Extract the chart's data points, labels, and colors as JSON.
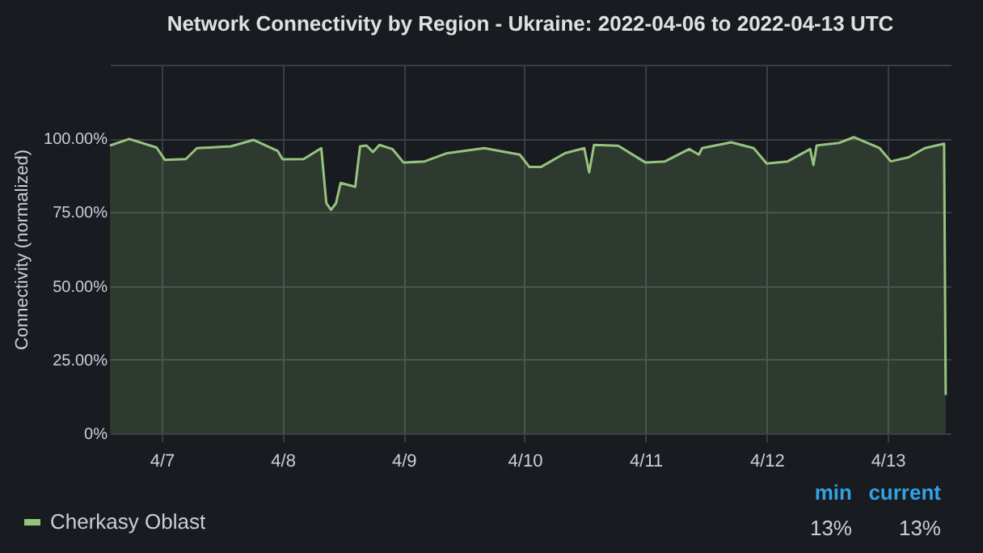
{
  "chart_data": {
    "type": "area",
    "title": "Network Connectivity by Region - Ukraine: 2022-04-06 to 2022-04-13 UTC",
    "ylabel": "Connectivity (normalized)",
    "x": [
      "2022-04-06T13:45",
      "2022-04-06T17:35",
      "2022-04-06T23:00",
      "2022-04-07T00:40",
      "2022-04-07T04:48",
      "2022-04-07T07:00",
      "2022-04-07T13:45",
      "2022-04-07T18:15",
      "2022-04-07T23:00",
      "2022-04-08T00:00",
      "2022-04-08T04:10",
      "2022-04-08T07:40",
      "2022-04-08T08:40",
      "2022-04-08T09:35",
      "2022-04-08T10:35",
      "2022-04-08T11:30",
      "2022-04-08T14:24",
      "2022-04-08T15:22",
      "2022-04-08T16:38",
      "2022-04-08T17:55",
      "2022-04-08T19:12",
      "2022-04-08T21:46",
      "2022-04-09T00:00",
      "2022-04-09T04:10",
      "2022-04-09T08:38",
      "2022-04-09T16:00",
      "2022-04-09T23:02",
      "2022-04-10T00:58",
      "2022-04-10T03:12",
      "2022-04-10T08:00",
      "2022-04-10T11:50",
      "2022-04-10T12:48",
      "2022-04-10T13:46",
      "2022-04-10T18:34",
      "2022-04-11T00:00",
      "2022-04-11T03:50",
      "2022-04-11T08:38",
      "2022-04-11T10:34",
      "2022-04-11T11:12",
      "2022-04-11T16:58",
      "2022-04-11T21:26",
      "2022-04-12T00:00",
      "2022-04-12T04:10",
      "2022-04-12T08:38",
      "2022-04-12T09:17",
      "2022-04-12T09:55",
      "2022-04-12T14:24",
      "2022-04-12T17:17",
      "2022-04-12T22:24",
      "2022-04-13T00:38",
      "2022-04-13T04:10",
      "2022-04-13T07:22",
      "2022-04-13T11:12",
      "2022-04-13T11:31"
    ],
    "series": [
      {
        "name": "Cherkasy Oblast",
        "color": "#96c47e",
        "values": [
          97.6,
          99.8,
          96.9,
          92.7,
          93,
          96.7,
          97.3,
          99.5,
          95.8,
          92.9,
          93,
          96.7,
          78.1,
          75.8,
          78,
          84.9,
          83.6,
          97.3,
          97.6,
          95.4,
          97.8,
          96.4,
          91.8,
          92.2,
          95,
          96.7,
          94.5,
          90.3,
          90.3,
          95,
          96.7,
          88.5,
          97.8,
          97.5,
          91.8,
          92.2,
          96.4,
          94.5,
          96.7,
          98.7,
          96.7,
          91.5,
          92.2,
          96.4,
          91,
          97.6,
          98.5,
          100.4,
          96.7,
          92.2,
          93.6,
          96.7,
          98.2,
          13
        ]
      }
    ],
    "xlim": [
      "2022-04-06T13:45",
      "2022-04-13T12:30"
    ],
    "xticks": [
      {
        "value": "2022-04-07",
        "label": "4/7"
      },
      {
        "value": "2022-04-08",
        "label": "4/8"
      },
      {
        "value": "2022-04-09",
        "label": "4/9"
      },
      {
        "value": "2022-04-10",
        "label": "4/10"
      },
      {
        "value": "2022-04-11",
        "label": "4/11"
      },
      {
        "value": "2022-04-12",
        "label": "4/12"
      },
      {
        "value": "2022-04-13",
        "label": "4/13"
      }
    ],
    "ylim": [
      0,
      125
    ],
    "yticks": [
      {
        "value": 0,
        "label": "0%"
      },
      {
        "value": 25,
        "label": "25.00%"
      },
      {
        "value": 50,
        "label": "50.00%"
      },
      {
        "value": 75,
        "label": "75.00%"
      },
      {
        "value": 100,
        "label": "100.00%"
      },
      {
        "value": 125,
        "label": null
      }
    ],
    "grid": true,
    "legend": "bottom left",
    "annotations": [
      "min",
      "current",
      "13%",
      "13%"
    ]
  }
}
